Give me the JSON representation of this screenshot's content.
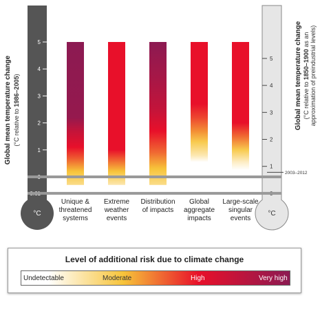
{
  "chart_data": {
    "type": "bar",
    "left_axis": {
      "title": "Global mean temperature change",
      "subtitle_prefix": "(°C relative to ",
      "subtitle_bold": "1986–2005",
      "subtitle_suffix": ")",
      "ticks": [
        5,
        4,
        3,
        2,
        1,
        0,
        -0.61
      ],
      "tick_labels": [
        "5",
        "4",
        "3",
        "2",
        "1",
        "0",
        "-0.61"
      ],
      "unit": "°C",
      "ylim": [
        -0.61,
        5
      ]
    },
    "right_axis": {
      "title": "Global mean temperature change",
      "subtitle_prefix": "(°C relative to ",
      "subtitle_bold": "1850–1900",
      "subtitle_suffix": " as an",
      "subtitle_line2": "approximation of preindustrial levels)",
      "ticks": [
        5,
        4,
        3,
        2,
        1,
        0
      ],
      "tick_labels": [
        "5",
        "4",
        "3",
        "2",
        "1",
        "0"
      ],
      "offset": 0.61,
      "unit": "°C",
      "annotation": "2003–2012",
      "annotation_value": 0.78
    },
    "categories": [
      {
        "lines": [
          "Unique &",
          "threatened",
          "systems"
        ]
      },
      {
        "lines": [
          "Extreme",
          "weather",
          "events"
        ]
      },
      {
        "lines": [
          "Distribution",
          "of impacts"
        ]
      },
      {
        "lines": [
          "Global",
          "aggregate",
          "impacts"
        ]
      },
      {
        "lines": [
          "Large-scale",
          "singular",
          "events"
        ]
      }
    ],
    "risk_scale": {
      "Undetectable": 0,
      "Moderate": 1,
      "High": 2,
      "Very high": 3
    },
    "bars": [
      {
        "stops": [
          [
            -0.3,
            0.6
          ],
          [
            0.2,
            1.0
          ],
          [
            0.7,
            1.6
          ],
          [
            1.1,
            2.0
          ],
          [
            1.7,
            2.4
          ],
          [
            2.2,
            2.9
          ],
          [
            5,
            3.0
          ]
        ]
      },
      {
        "stops": [
          [
            -0.3,
            0.4
          ],
          [
            0.2,
            1.0
          ],
          [
            0.6,
            1.5
          ],
          [
            1.0,
            2.0
          ],
          [
            5,
            2.0
          ]
        ]
      },
      {
        "stops": [
          [
            -0.3,
            0.6
          ],
          [
            0.3,
            1.0
          ],
          [
            0.9,
            1.5
          ],
          [
            1.7,
            2.0
          ],
          [
            2.5,
            2.4
          ],
          [
            3.6,
            2.7
          ],
          [
            5,
            3.0
          ]
        ]
      },
      {
        "stops": [
          [
            0.55,
            0.0
          ],
          [
            0.8,
            0.4
          ],
          [
            1.3,
            0.9
          ],
          [
            1.7,
            1.3
          ],
          [
            2.2,
            1.7
          ],
          [
            2.7,
            2.0
          ],
          [
            5,
            2.0
          ]
        ]
      },
      {
        "stops": [
          [
            0.25,
            0.0
          ],
          [
            0.55,
            0.3
          ],
          [
            1.0,
            0.9
          ],
          [
            1.5,
            1.5
          ],
          [
            2.0,
            2.0
          ],
          [
            5,
            2.0
          ]
        ]
      }
    ],
    "legend": {
      "title": "Level of additional risk due to climate change",
      "labels": [
        "Undetectable",
        "Moderate",
        "High",
        "Very high"
      ],
      "colors": [
        "#ffffff",
        "#f7c43a",
        "#e8102a",
        "#8c1a52"
      ]
    },
    "thermometer_colors": {
      "left": "#555555",
      "right": "#e6e6e6",
      "zero_line": "#999999"
    }
  }
}
